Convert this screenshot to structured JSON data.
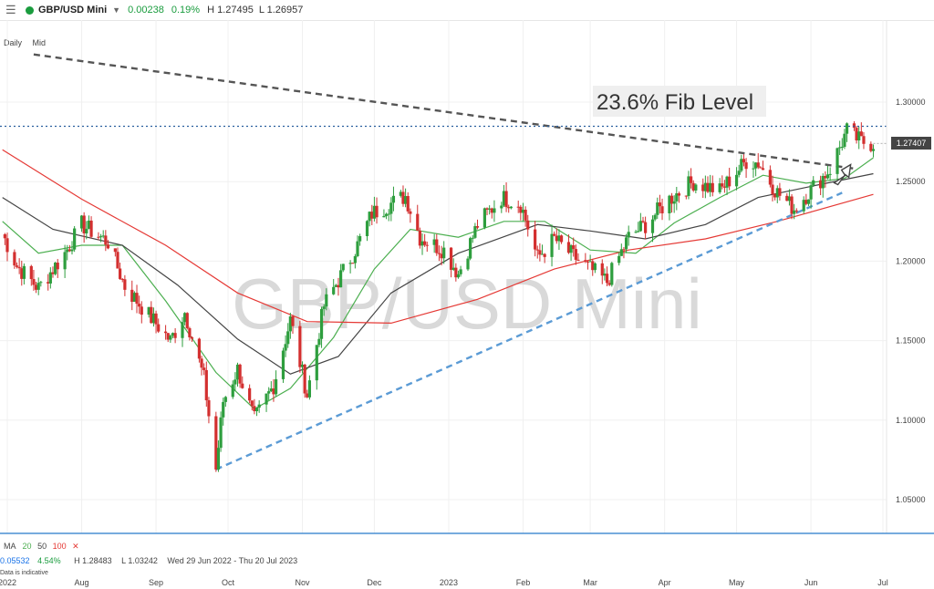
{
  "header": {
    "symbol": "GBP/USD Mini",
    "change": "0.00238",
    "change_pct": "0.19%",
    "high": "H 1.27495",
    "low": "L 1.26957",
    "status_color": "#1a9c3e"
  },
  "subheader": {
    "interval": "Daily",
    "price_mode": "Mid"
  },
  "indicator": {
    "name": "MA",
    "periods": [
      "20",
      "50",
      "100"
    ],
    "colors": [
      "#4caf50",
      "#444444",
      "#e53935"
    ],
    "close_icon": "close-icon"
  },
  "info": {
    "change": "0.05532",
    "change_pct": "4.54%",
    "high": "H 1.28483",
    "low": "L 1.03242",
    "range": "Wed 29 Jun 2022 - Thu 20 Jul 2023",
    "note": "Data is indicative"
  },
  "chart_data": {
    "type": "candlestick",
    "watermark": "GBP/USD Mini",
    "annotation": "23.6% Fib Level",
    "fib_level": 1.2848,
    "last_price": "1.27407",
    "last_price_value": 1.27407,
    "ylim": [
      1.03,
      1.33
    ],
    "y_ticks": [
      "1.05000",
      "1.10000",
      "1.15000",
      "1.20000",
      "1.25000",
      "1.30000"
    ],
    "y_tick_values": [
      1.05,
      1.1,
      1.15,
      1.2,
      1.25,
      1.3
    ],
    "x_ticks": [
      "2022",
      "Aug",
      "Sep",
      "Oct",
      "Nov",
      "Dec",
      "2023",
      "Feb",
      "Mar",
      "Apr",
      "May",
      "Jun",
      "Jul"
    ],
    "x_tick_dates": [
      "2022-07-01",
      "2022-08-01",
      "2022-09-01",
      "2022-10-01",
      "2022-11-01",
      "2022-12-01",
      "2023-01-01",
      "2023-02-01",
      "2023-03-01",
      "2023-04-01",
      "2023-05-01",
      "2023-06-01",
      "2023-07-01"
    ],
    "x_range": [
      "2022-06-29",
      "2023-07-20"
    ],
    "closes": [
      [
        "2022-06-29",
        1.217
      ],
      [
        "2022-07-05",
        1.197
      ],
      [
        "2022-07-14",
        1.183
      ],
      [
        "2022-07-25",
        1.205
      ],
      [
        "2022-08-01",
        1.223
      ],
      [
        "2022-08-12",
        1.212
      ],
      [
        "2022-08-19",
        1.184
      ],
      [
        "2022-08-29",
        1.166
      ],
      [
        "2022-09-07",
        1.15
      ],
      [
        "2022-09-13",
        1.168
      ],
      [
        "2022-09-21",
        1.126
      ],
      [
        "2022-09-26",
        1.069
      ],
      [
        "2022-09-29",
        1.112
      ],
      [
        "2022-10-05",
        1.132
      ],
      [
        "2022-10-12",
        1.1
      ],
      [
        "2022-10-20",
        1.122
      ],
      [
        "2022-10-27",
        1.163
      ],
      [
        "2022-11-03",
        1.116
      ],
      [
        "2022-11-10",
        1.172
      ],
      [
        "2022-11-16",
        1.188
      ],
      [
        "2022-11-24",
        1.21
      ],
      [
        "2022-11-30",
        1.23
      ],
      [
        "2022-12-14",
        1.241
      ],
      [
        "2022-12-20",
        1.215
      ],
      [
        "2022-12-30",
        1.207
      ],
      [
        "2023-01-05",
        1.192
      ],
      [
        "2023-01-13",
        1.223
      ],
      [
        "2023-01-23",
        1.24
      ],
      [
        "2023-01-31",
        1.236
      ],
      [
        "2023-02-07",
        1.202
      ],
      [
        "2023-02-14",
        1.214
      ],
      [
        "2023-02-22",
        1.203
      ],
      [
        "2023-03-01",
        1.195
      ],
      [
        "2023-03-08",
        1.187
      ],
      [
        "2023-03-17",
        1.215
      ],
      [
        "2023-03-24",
        1.223
      ],
      [
        "2023-04-03",
        1.239
      ],
      [
        "2023-04-13",
        1.25
      ],
      [
        "2023-04-24",
        1.244
      ],
      [
        "2023-05-05",
        1.263
      ],
      [
        "2023-05-10",
        1.262
      ],
      [
        "2023-05-18",
        1.243
      ],
      [
        "2023-05-25",
        1.233
      ],
      [
        "2023-06-01",
        1.245
      ],
      [
        "2023-06-09",
        1.258
      ],
      [
        "2023-06-16",
        1.282
      ],
      [
        "2023-06-22",
        1.275
      ],
      [
        "2023-06-27",
        1.274
      ]
    ],
    "series": [
      {
        "name": "MA 20",
        "color": "#4caf50",
        "values": [
          [
            "2022-06-29",
            1.225
          ],
          [
            "2022-07-14",
            1.205
          ],
          [
            "2022-08-01",
            1.21
          ],
          [
            "2022-08-18",
            1.21
          ],
          [
            "2022-09-05",
            1.175
          ],
          [
            "2022-09-26",
            1.13
          ],
          [
            "2022-10-12",
            1.107
          ],
          [
            "2022-10-27",
            1.12
          ],
          [
            "2022-11-14",
            1.152
          ],
          [
            "2022-12-01",
            1.195
          ],
          [
            "2022-12-16",
            1.22
          ],
          [
            "2023-01-05",
            1.215
          ],
          [
            "2023-01-24",
            1.225
          ],
          [
            "2023-02-10",
            1.225
          ],
          [
            "2023-03-01",
            1.207
          ],
          [
            "2023-03-20",
            1.205
          ],
          [
            "2023-04-05",
            1.224
          ],
          [
            "2023-04-24",
            1.24
          ],
          [
            "2023-05-12",
            1.254
          ],
          [
            "2023-05-30",
            1.249
          ],
          [
            "2023-06-15",
            1.252
          ],
          [
            "2023-06-27",
            1.265
          ]
        ]
      },
      {
        "name": "MA 50",
        "color": "#444444",
        "values": [
          [
            "2022-06-29",
            1.24
          ],
          [
            "2022-07-20",
            1.22
          ],
          [
            "2022-08-18",
            1.21
          ],
          [
            "2022-09-10",
            1.185
          ],
          [
            "2022-10-05",
            1.151
          ],
          [
            "2022-10-27",
            1.129
          ],
          [
            "2022-11-16",
            1.14
          ],
          [
            "2022-12-08",
            1.18
          ],
          [
            "2023-01-05",
            1.205
          ],
          [
            "2023-02-07",
            1.223
          ],
          [
            "2023-03-01",
            1.219
          ],
          [
            "2023-03-24",
            1.214
          ],
          [
            "2023-04-18",
            1.223
          ],
          [
            "2023-05-10",
            1.24
          ],
          [
            "2023-06-01",
            1.247
          ],
          [
            "2023-06-27",
            1.255
          ]
        ]
      },
      {
        "name": "MA 100",
        "color": "#e53935",
        "values": [
          [
            "2022-06-29",
            1.27
          ],
          [
            "2022-08-01",
            1.239
          ],
          [
            "2022-09-05",
            1.21
          ],
          [
            "2022-10-05",
            1.18
          ],
          [
            "2022-11-03",
            1.162
          ],
          [
            "2022-12-08",
            1.161
          ],
          [
            "2023-01-13",
            1.176
          ],
          [
            "2023-02-14",
            1.195
          ],
          [
            "2023-03-17",
            1.207
          ],
          [
            "2023-04-18",
            1.214
          ],
          [
            "2023-05-18",
            1.225
          ],
          [
            "2023-06-27",
            1.242
          ]
        ]
      }
    ],
    "trendlines": [
      {
        "kind": "resistance",
        "style": "dashed",
        "color": "#555555",
        "from": [
          "2022-07-12",
          1.33
        ],
        "to": [
          "2023-06-20",
          1.258
        ]
      },
      {
        "kind": "support",
        "style": "dashed",
        "color": "#5b9bd5",
        "from": [
          "2022-09-26",
          1.069
        ],
        "to": [
          "2023-06-14",
          1.243
        ]
      }
    ],
    "colors": {
      "up": "#2e9e3e",
      "down": "#d32f2f",
      "fib_line": "#2a5f9e",
      "arrow": "#444444"
    },
    "grid": true
  }
}
